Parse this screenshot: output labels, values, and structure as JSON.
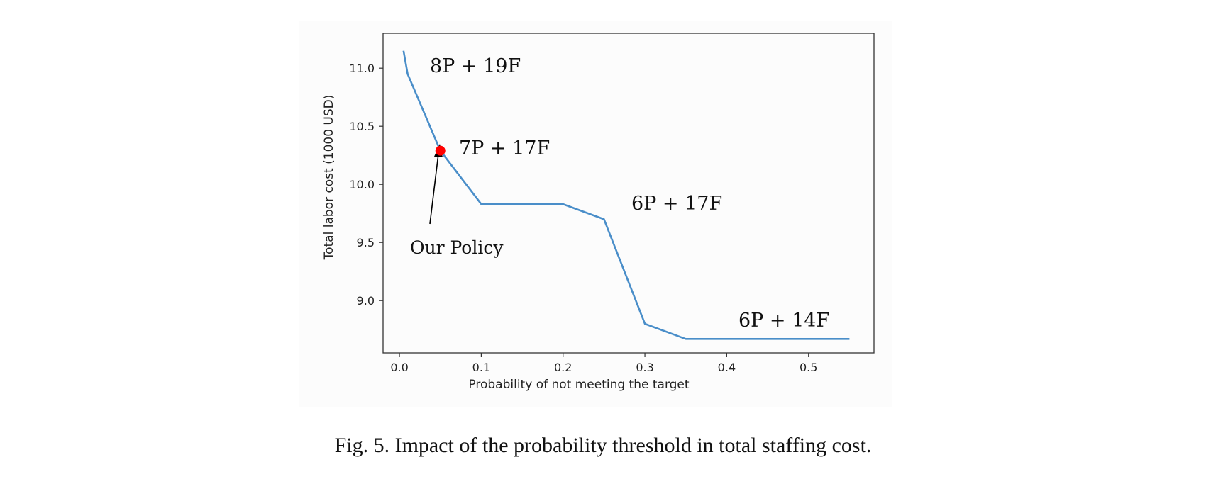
{
  "chart_data": {
    "type": "line",
    "title": "",
    "xlabel": "Probability of not meeting the target",
    "ylabel": "Total labor cost (1000 USD)",
    "xlim": [
      -0.02,
      0.58
    ],
    "ylim": [
      8.55,
      11.3
    ],
    "x_ticks": [
      "0.0",
      "0.1",
      "0.2",
      "0.3",
      "0.4",
      "0.5"
    ],
    "y_ticks": [
      "9.0",
      "9.5",
      "10.0",
      "10.5",
      "11.0"
    ],
    "grid": false,
    "series": [
      {
        "color": "#4a8ec9",
        "x": [
          0.005,
          0.01,
          0.05,
          0.1,
          0.15,
          0.2,
          0.25,
          0.3,
          0.35,
          0.4,
          0.45,
          0.5,
          0.55
        ],
        "y": [
          11.15,
          10.95,
          10.29,
          9.83,
          9.83,
          9.83,
          9.7,
          8.8,
          8.67,
          8.67,
          8.67,
          8.67,
          8.67
        ]
      }
    ],
    "highlight_point": {
      "x": 0.05,
      "y": 10.29,
      "color": "#ff0000"
    },
    "annotations": [
      {
        "text": "8P + 19F"
      },
      {
        "text": "7P + 17F"
      },
      {
        "text": "6P + 17F"
      },
      {
        "text": "6P + 14F"
      },
      {
        "text": "Our Policy"
      }
    ]
  },
  "caption": "Fig. 5. Impact of the probability threshold in total staffing cost."
}
